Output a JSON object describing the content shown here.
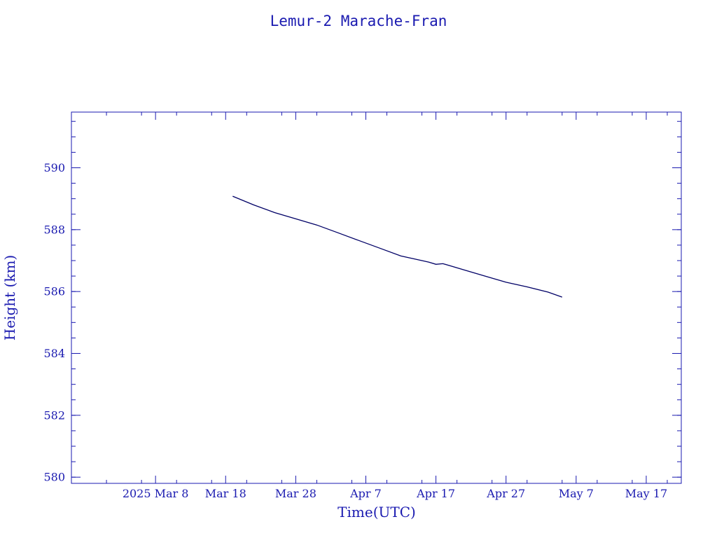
{
  "chart_data": {
    "type": "line",
    "title": "Lemur-2 Marache-Fran",
    "xlabel": "Time(UTC)",
    "ylabel": "Height (km)",
    "ylim": [
      579.8,
      591.8
    ],
    "xlim": [
      "2025-02-24",
      "2025-05-22"
    ],
    "x_tick_labels": [
      "2025 Mar  8",
      "Mar 18",
      "Mar 28",
      "Apr  7",
      "Apr 17",
      "Apr 27",
      "May  7",
      "May 17"
    ],
    "x_tick_dates": [
      "2025-03-08",
      "2025-03-18",
      "2025-03-28",
      "2025-04-07",
      "2025-04-17",
      "2025-04-27",
      "2025-05-07",
      "2025-05-17"
    ],
    "y_ticks": [
      580,
      582,
      584,
      586,
      588,
      590
    ],
    "y_tick_labels": [
      "580",
      "582",
      "584",
      "586",
      "588",
      "590"
    ],
    "grid": false,
    "color": "#000066",
    "series": [
      {
        "x": [
          "2025-03-19",
          "2025-03-22",
          "2025-03-25",
          "2025-03-28",
          "2025-03-31",
          "2025-04-03",
          "2025-04-06",
          "2025-04-09",
          "2025-04-12",
          "2025-04-15",
          "2025-04-16",
          "2025-04-17",
          "2025-04-18",
          "2025-04-21",
          "2025-04-24",
          "2025-04-27",
          "2025-04-30",
          "2025-05-03",
          "2025-05-05"
        ],
        "y": [
          589.08,
          588.8,
          588.55,
          588.35,
          588.15,
          587.9,
          587.65,
          587.4,
          587.15,
          587.0,
          586.95,
          586.88,
          586.9,
          586.7,
          586.5,
          586.3,
          586.15,
          585.98,
          585.82
        ]
      }
    ]
  }
}
